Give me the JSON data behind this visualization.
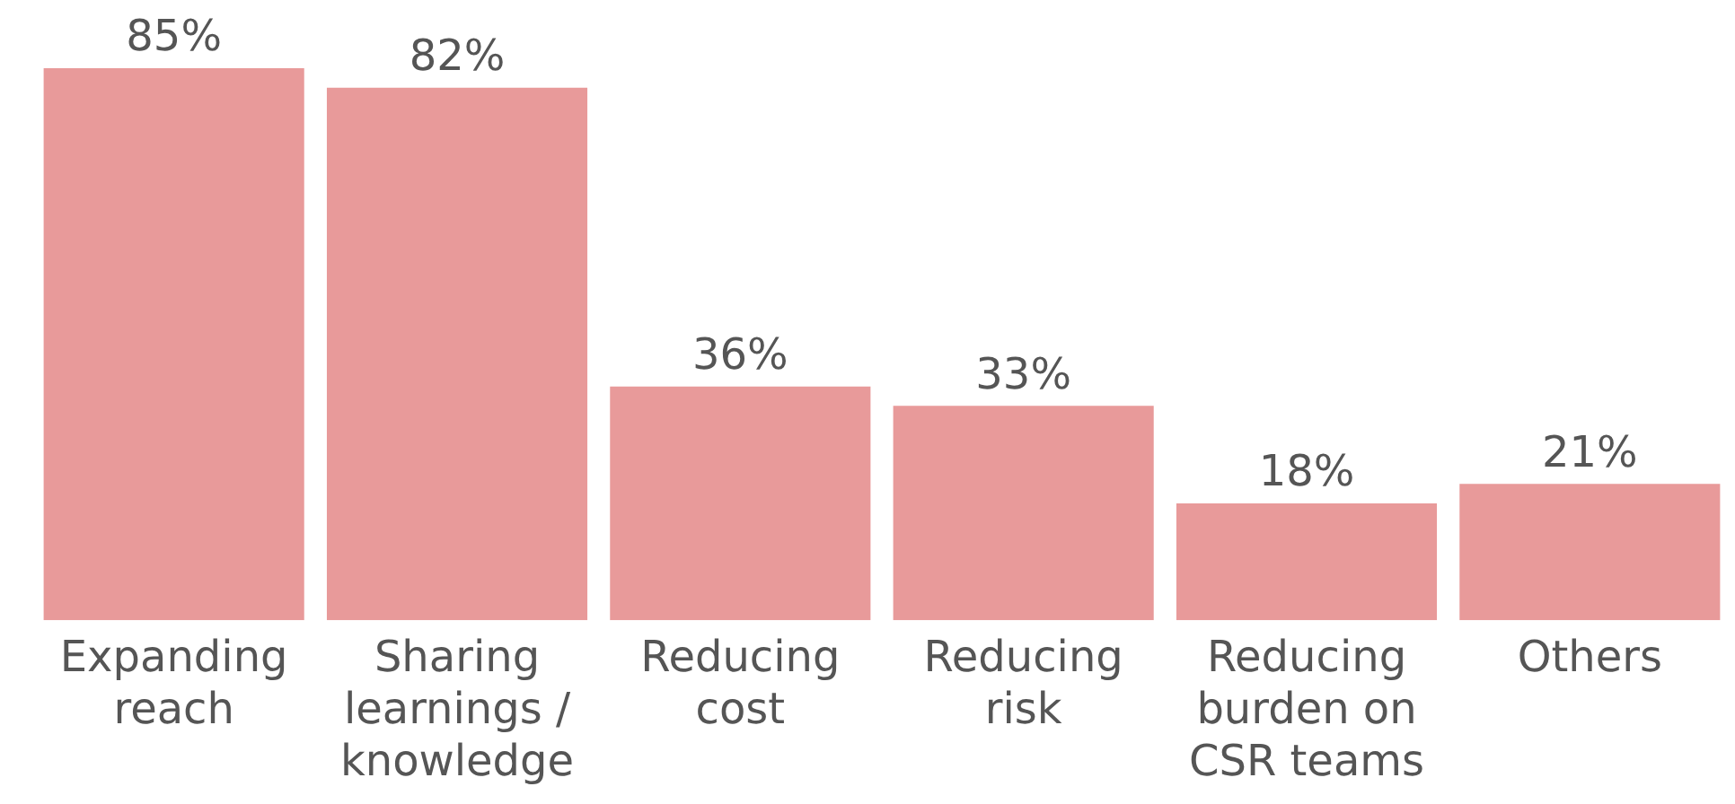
{
  "chart_data": {
    "type": "bar",
    "categories": [
      "Expanding reach",
      "Sharing learnings / knowledge",
      "Reducing cost",
      "Reducing risk",
      "Reducing burden on CSR teams",
      "Others"
    ],
    "values": [
      85,
      82,
      36,
      33,
      18,
      21
    ],
    "value_labels": [
      "85%",
      "82%",
      "36%",
      "33%",
      "18%",
      "21%"
    ],
    "color": "#e89a9a",
    "grid": false,
    "legend": false,
    "relative": false
  }
}
